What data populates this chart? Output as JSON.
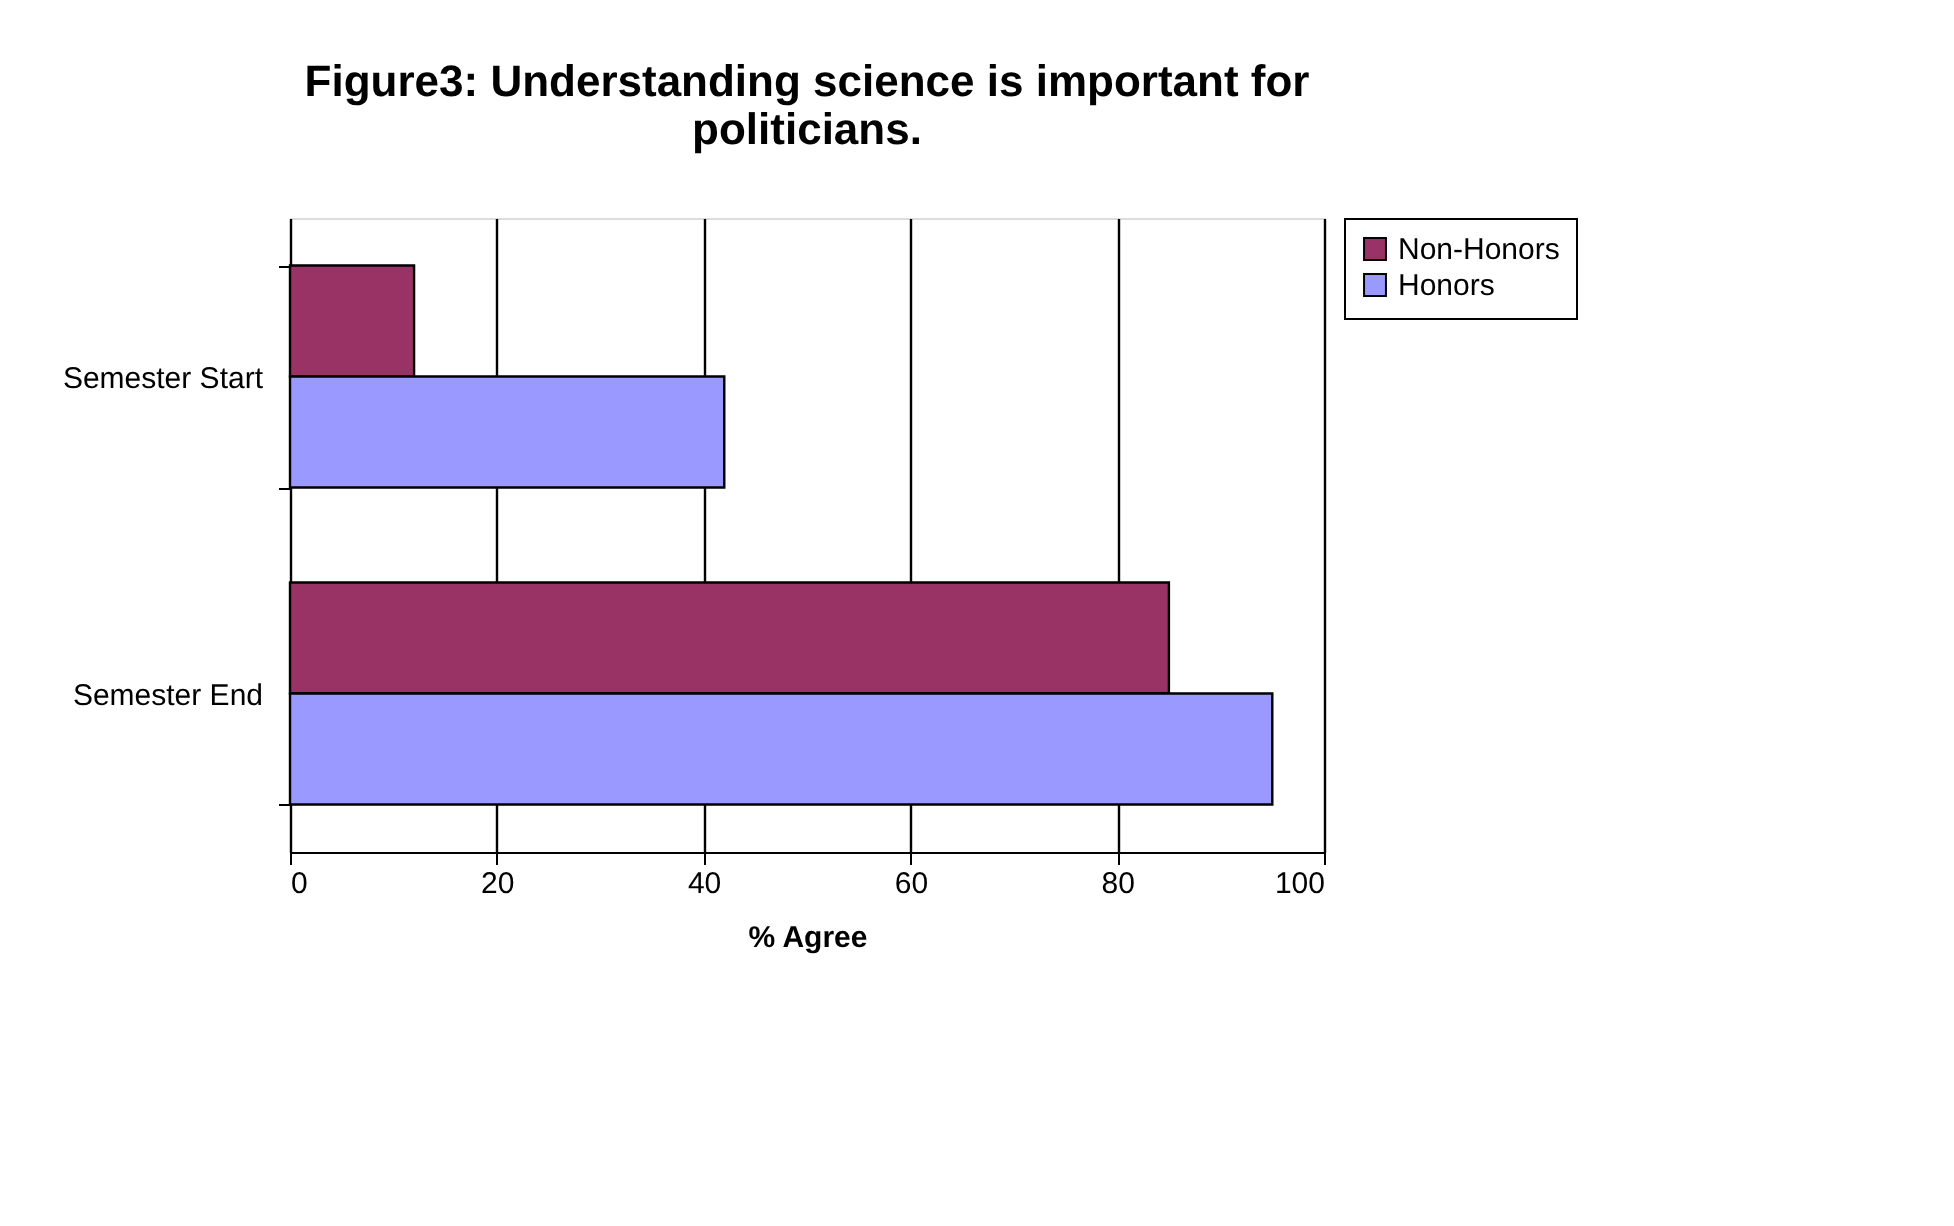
{
  "chart_data": {
    "type": "bar",
    "orientation": "horizontal",
    "title": "Figure3: Understanding science is important for politicians.",
    "xlabel": "% Agree",
    "categories": [
      "Semester Start",
      "Semester End"
    ],
    "series": [
      {
        "name": "Non-Honors",
        "color": "#993366",
        "values": [
          12,
          85
        ]
      },
      {
        "name": "Honors",
        "color": "#9999ff",
        "values": [
          42,
          95
        ]
      }
    ],
    "xlim": [
      0,
      100
    ],
    "xticks": [
      0,
      20,
      40,
      60,
      80,
      100
    ],
    "grid": "x",
    "legend": "right"
  }
}
